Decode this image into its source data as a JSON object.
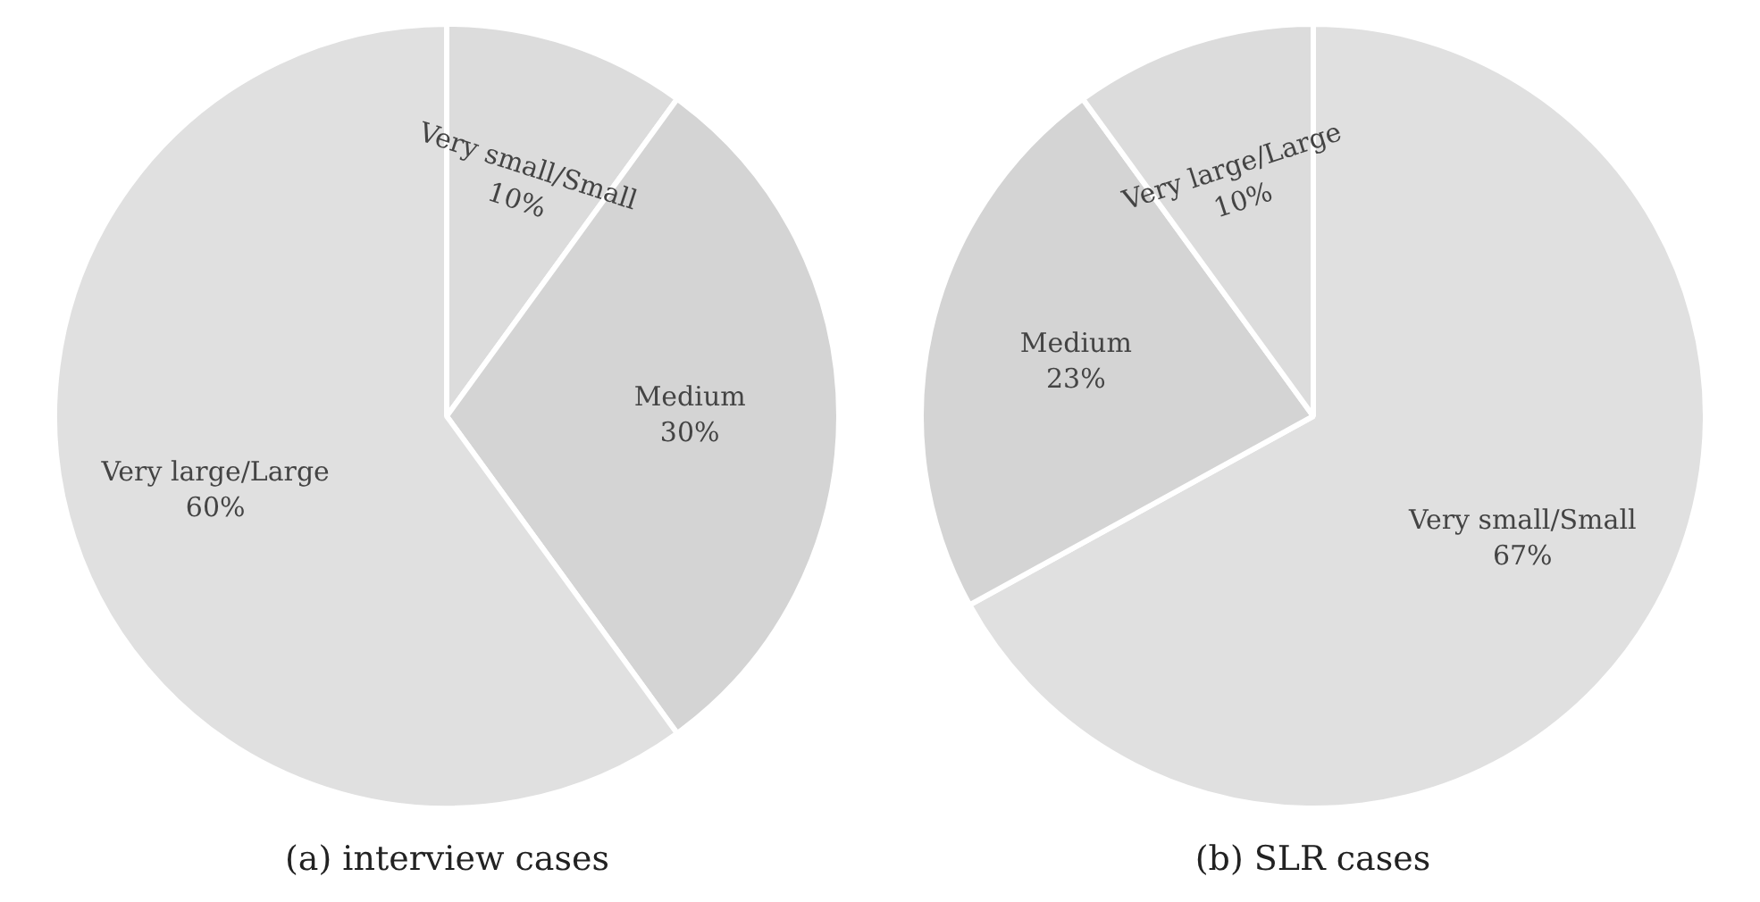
{
  "chart_data": [
    {
      "type": "pie",
      "title": "(a) interview cases",
      "categories": [
        "Very small/Small",
        "Medium",
        "Very large/Large"
      ],
      "values": [
        10,
        30,
        60
      ],
      "value_labels": [
        "10%",
        "30%",
        "60%"
      ],
      "colors": [
        "#dcdcdc",
        "#d4d4d4",
        "#e0e0e0"
      ],
      "legend": false
    },
    {
      "type": "pie",
      "title": "(b) SLR cases",
      "categories": [
        "Very small/Small",
        "Medium",
        "Very large/Large"
      ],
      "values": [
        67,
        23,
        10
      ],
      "value_labels": [
        "67%",
        "23%",
        "10%"
      ],
      "colors": [
        "#e0e0e0",
        "#d4d4d4",
        "#dcdcdc"
      ],
      "legend": false
    }
  ]
}
